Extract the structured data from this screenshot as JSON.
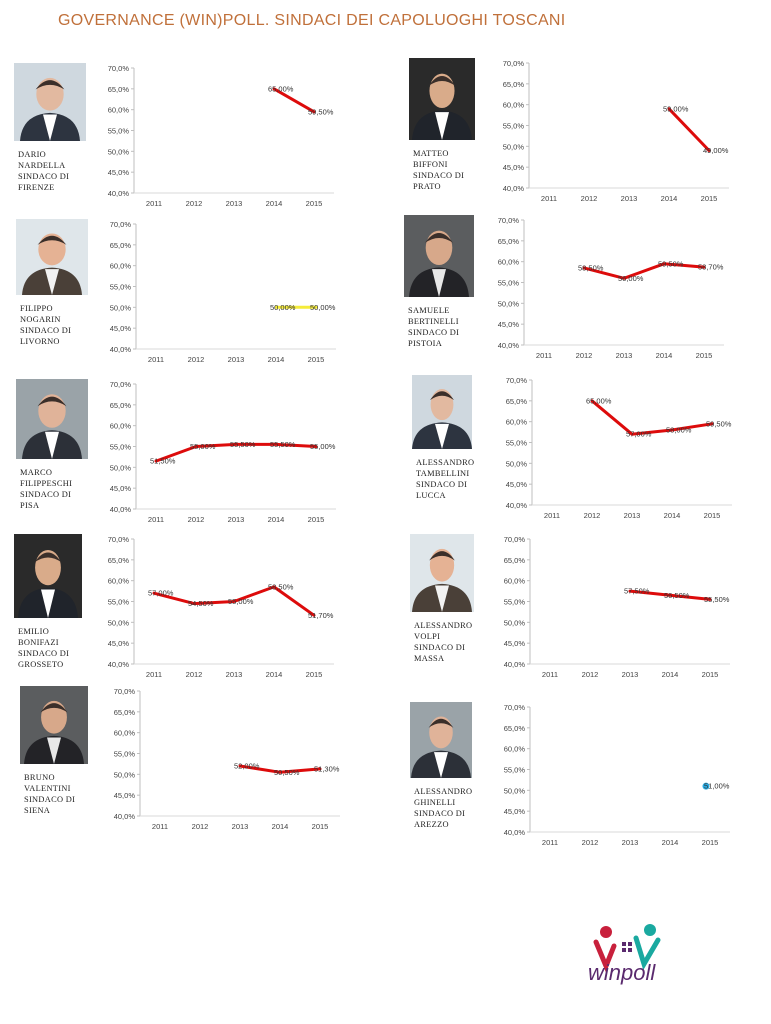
{
  "header": {
    "title": "GOVERNANCE (WIN)POLL. SINDACI DEI CAPOLUOGHI TOSCANI"
  },
  "logo": {
    "text": "winpoll",
    "colors": [
      "#c8203c",
      "#1aa9a0",
      "#5a2a6e"
    ]
  },
  "chart_data": [
    {
      "type": "line",
      "panel": "firenze",
      "name_lines": [
        "DARIO",
        "NARDELLA",
        "SINDACO DI",
        "FIRENZE"
      ],
      "categories": [
        "2011",
        "2012",
        "2013",
        "2014",
        "2015"
      ],
      "series": [
        {
          "values": [
            null,
            null,
            null,
            65.0,
            59.5
          ],
          "labels": [
            "",
            "",
            "",
            "65,00%",
            "59,50%"
          ],
          "color": "#dd0b0b"
        }
      ],
      "yticks": [
        "70,0%",
        "65,0%",
        "60,0%",
        "55,0%",
        "50,0%",
        "45,0%",
        "40,0%"
      ],
      "ylim": [
        40,
        70
      ],
      "grid": false,
      "legend": false
    },
    {
      "type": "line",
      "panel": "prato",
      "name_lines": [
        "MATTEO",
        "BIFFONI",
        "SINDACO DI",
        "PRATO"
      ],
      "categories": [
        "2011",
        "2012",
        "2013",
        "2014",
        "2015"
      ],
      "series": [
        {
          "values": [
            null,
            null,
            null,
            59.0,
            49.0
          ],
          "labels": [
            "",
            "",
            "",
            "59,00%",
            "49,00%"
          ],
          "color": "#dd0b0b"
        }
      ],
      "yticks": [
        "70,0%",
        "65,0%",
        "60,0%",
        "55,0%",
        "50,0%",
        "45,0%",
        "40,0%"
      ],
      "ylim": [
        40,
        70
      ],
      "grid": false,
      "legend": false
    },
    {
      "type": "line",
      "panel": "livorno",
      "name_lines": [
        "FILIPPO",
        "NOGARIN",
        "SINDACO DI",
        "LIVORNO"
      ],
      "categories": [
        "2011",
        "2012",
        "2013",
        "2014",
        "2015"
      ],
      "series": [
        {
          "values": [
            null,
            null,
            null,
            50.0,
            50.0
          ],
          "labels": [
            "",
            "",
            "",
            "50,00%",
            "50,00%"
          ],
          "color": "#f5ec3a"
        }
      ],
      "yticks": [
        "70,0%",
        "65,0%",
        "60,0%",
        "55,0%",
        "50,0%",
        "45,0%",
        "40,0%"
      ],
      "ylim": [
        40,
        70
      ],
      "grid": false,
      "legend": false
    },
    {
      "type": "line",
      "panel": "pistoia",
      "name_lines": [
        "SAMUELE",
        "BERTINELLI",
        "SINDACO DI",
        "PISTOIA"
      ],
      "categories": [
        "2011",
        "2012",
        "2013",
        "2014",
        "2015"
      ],
      "series": [
        {
          "values": [
            null,
            58.5,
            56.0,
            59.5,
            58.7
          ],
          "labels": [
            "",
            "58,50%",
            "56,00%",
            "59,50%",
            "58,70%"
          ],
          "color": "#dd0b0b"
        }
      ],
      "yticks": [
        "70,0%",
        "65,0%",
        "60,0%",
        "55,0%",
        "50,0%",
        "45,0%",
        "40,0%"
      ],
      "ylim": [
        40,
        70
      ],
      "grid": false,
      "legend": false
    },
    {
      "type": "line",
      "panel": "pisa",
      "name_lines": [
        "MARCO",
        "FILIPPESCHI",
        "SINDACO DI",
        "PISA"
      ],
      "categories": [
        "2011",
        "2012",
        "2013",
        "2014",
        "2015"
      ],
      "series": [
        {
          "values": [
            51.5,
            55.0,
            55.5,
            55.5,
            55.0
          ],
          "labels": [
            "51,50%",
            "55,00%",
            "55,50%",
            "55,50%",
            "55,00%"
          ],
          "color": "#dd0b0b"
        }
      ],
      "yticks": [
        "70,0%",
        "65,0%",
        "60,0%",
        "55,0%",
        "50,0%",
        "45,0%",
        "40,0%"
      ],
      "ylim": [
        40,
        70
      ],
      "grid": false,
      "legend": false
    },
    {
      "type": "line",
      "panel": "lucca",
      "name_lines": [
        "ALESSANDRO",
        "TAMBELLINI",
        "SINDACO DI",
        "LUCCA"
      ],
      "categories": [
        "2011",
        "2012",
        "2013",
        "2014",
        "2015"
      ],
      "series": [
        {
          "values": [
            null,
            65.0,
            57.0,
            58.0,
            59.5
          ],
          "labels": [
            "",
            "65,00%",
            "57,00%",
            "58,00%",
            "59,50%"
          ],
          "color": "#dd0b0b"
        }
      ],
      "yticks": [
        "70,0%",
        "65,0%",
        "60,0%",
        "55,0%",
        "50,0%",
        "45,0%",
        "40,0%"
      ],
      "ylim": [
        40,
        70
      ],
      "grid": false,
      "legend": false
    },
    {
      "type": "line",
      "panel": "grosseto",
      "name_lines": [
        "EMILIO",
        "BONIFAZI",
        "SINDACO DI",
        "GROSSETO"
      ],
      "categories": [
        "2011",
        "2012",
        "2013",
        "2014",
        "2015"
      ],
      "series": [
        {
          "values": [
            57.0,
            54.5,
            55.0,
            58.5,
            51.7
          ],
          "labels": [
            "57,00%",
            "54,50%",
            "55,00%",
            "58,50%",
            "51,70%"
          ],
          "color": "#dd0b0b"
        }
      ],
      "yticks": [
        "70,0%",
        "65,0%",
        "60,0%",
        "55,0%",
        "50,0%",
        "45,0%",
        "40,0%"
      ],
      "ylim": [
        40,
        70
      ],
      "grid": false,
      "legend": false
    },
    {
      "type": "line",
      "panel": "massa",
      "name_lines": [
        "ALESSANDRO",
        "VOLPI",
        "SINDACO DI",
        "MASSA"
      ],
      "categories": [
        "2011",
        "2012",
        "2013",
        "2014",
        "2015"
      ],
      "series": [
        {
          "values": [
            null,
            null,
            57.5,
            56.5,
            55.5
          ],
          "labels": [
            "",
            "",
            "57,50%",
            "56,50%",
            "55,50%"
          ],
          "color": "#dd0b0b"
        }
      ],
      "yticks": [
        "70,0%",
        "65,0%",
        "60,0%",
        "55,0%",
        "50,0%",
        "45,0%",
        "40,0%"
      ],
      "ylim": [
        40,
        70
      ],
      "grid": false,
      "legend": false
    },
    {
      "type": "line",
      "panel": "siena",
      "name_lines": [
        "BRUNO",
        "VALENTINI",
        "SINDACO DI",
        "SIENA"
      ],
      "categories": [
        "2011",
        "2012",
        "2013",
        "2014",
        "2015"
      ],
      "series": [
        {
          "values": [
            null,
            null,
            52.0,
            50.5,
            51.3
          ],
          "labels": [
            "",
            "",
            "52,00%",
            "50,50%",
            "51,30%"
          ],
          "color": "#dd0b0b"
        }
      ],
      "yticks": [
        "70,0%",
        "65,0%",
        "60,0%",
        "55,0%",
        "50,0%",
        "45,0%",
        "40,0%"
      ],
      "ylim": [
        40,
        70
      ],
      "grid": false,
      "legend": false
    },
    {
      "type": "line",
      "panel": "arezzo",
      "name_lines": [
        "ALESSANDRO",
        "GHINELLI",
        "SINDACO DI",
        "AREZZO"
      ],
      "categories": [
        "2011",
        "2012",
        "2013",
        "2014",
        "2015"
      ],
      "series": [
        {
          "values": [
            null,
            null,
            null,
            null,
            51.0
          ],
          "labels": [
            "",
            "",
            "",
            "",
            "51,00%"
          ],
          "color": "#29a9e0",
          "marker": "dot"
        }
      ],
      "yticks": [
        "70,0%",
        "65,0%",
        "60,0%",
        "55,0%",
        "50,0%",
        "45,0%",
        "40,0%"
      ],
      "ylim": [
        40,
        70
      ],
      "grid": false,
      "legend": false
    }
  ]
}
